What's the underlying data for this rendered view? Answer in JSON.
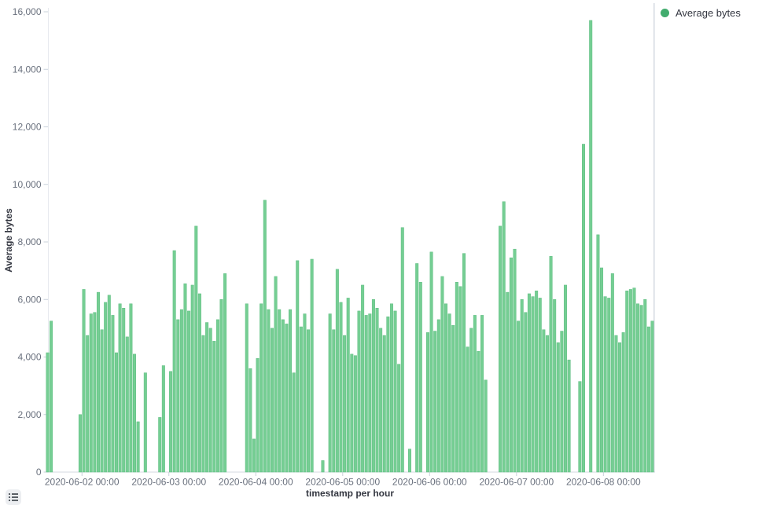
{
  "legend": {
    "label": "Average bytes",
    "color": "#42AC6E",
    "swatch_icon": "legend-series-dot-icon"
  },
  "y_axis": {
    "title": "Average bytes",
    "ticks": [
      {
        "v": 0,
        "label": "0"
      },
      {
        "v": 2000,
        "label": "2,000"
      },
      {
        "v": 4000,
        "label": "4,000"
      },
      {
        "v": 6000,
        "label": "6,000"
      },
      {
        "v": 8000,
        "label": "8,000"
      },
      {
        "v": 10000,
        "label": "10,000"
      },
      {
        "v": 12000,
        "label": "12,000"
      },
      {
        "v": 14000,
        "label": "14,000"
      },
      {
        "v": 16000,
        "label": "16,000"
      }
    ]
  },
  "x_axis": {
    "title": "timestamp per hour",
    "ticks": [
      {
        "h": 10,
        "label": "2020-06-02 00:00"
      },
      {
        "h": 34,
        "label": "2020-06-03 00:00"
      },
      {
        "h": 58,
        "label": "2020-06-04 00:00"
      },
      {
        "h": 82,
        "label": "2020-06-05 00:00"
      },
      {
        "h": 106,
        "label": "2020-06-06 00:00"
      },
      {
        "h": 130,
        "label": "2020-06-07 00:00"
      },
      {
        "h": 154,
        "label": "2020-06-08 00:00"
      }
    ]
  },
  "controls": {
    "legend_toggle_icon": "list-icon"
  },
  "chart_data": {
    "type": "bar",
    "title": "",
    "series_name": "Average bytes",
    "xlabel": "timestamp per hour",
    "ylabel": "Average bytes",
    "ylim": [
      0,
      16000
    ],
    "x_unit": "hours, h = hours after chart start (approx 2020-06-01 14:00); span = 168 h (7 days)",
    "grid": false,
    "legend_position": "top-right",
    "bar_color": "#75CE93",
    "bar_edge_color": "#5FBE82",
    "points": [
      {
        "h": 0,
        "v": 4150
      },
      {
        "h": 1,
        "v": 5250
      },
      {
        "h": 9,
        "v": 2000
      },
      {
        "h": 10,
        "v": 6350
      },
      {
        "h": 11,
        "v": 4750
      },
      {
        "h": 12,
        "v": 5500
      },
      {
        "h": 13,
        "v": 5550
      },
      {
        "h": 14,
        "v": 6250
      },
      {
        "h": 15,
        "v": 4950
      },
      {
        "h": 16,
        "v": 5900
      },
      {
        "h": 17,
        "v": 6150
      },
      {
        "h": 18,
        "v": 5450
      },
      {
        "h": 19,
        "v": 4150
      },
      {
        "h": 20,
        "v": 5850
      },
      {
        "h": 21,
        "v": 5700
      },
      {
        "h": 22,
        "v": 4700
      },
      {
        "h": 23,
        "v": 5850
      },
      {
        "h": 24,
        "v": 4100
      },
      {
        "h": 25,
        "v": 1750
      },
      {
        "h": 27,
        "v": 3450
      },
      {
        "h": 31,
        "v": 1900
      },
      {
        "h": 32,
        "v": 3700
      },
      {
        "h": 34,
        "v": 3500
      },
      {
        "h": 35,
        "v": 7700
      },
      {
        "h": 36,
        "v": 5300
      },
      {
        "h": 37,
        "v": 5650
      },
      {
        "h": 38,
        "v": 6550
      },
      {
        "h": 39,
        "v": 5600
      },
      {
        "h": 40,
        "v": 6500
      },
      {
        "h": 41,
        "v": 8550
      },
      {
        "h": 42,
        "v": 6200
      },
      {
        "h": 43,
        "v": 4750
      },
      {
        "h": 44,
        "v": 5200
      },
      {
        "h": 45,
        "v": 5000
      },
      {
        "h": 46,
        "v": 4550
      },
      {
        "h": 47,
        "v": 5300
      },
      {
        "h": 48,
        "v": 6000
      },
      {
        "h": 49,
        "v": 6900
      },
      {
        "h": 55,
        "v": 5850
      },
      {
        "h": 56,
        "v": 3600
      },
      {
        "h": 57,
        "v": 1150
      },
      {
        "h": 58,
        "v": 3950
      },
      {
        "h": 59,
        "v": 5850
      },
      {
        "h": 60,
        "v": 9450
      },
      {
        "h": 61,
        "v": 5650
      },
      {
        "h": 62,
        "v": 5000
      },
      {
        "h": 63,
        "v": 6800
      },
      {
        "h": 64,
        "v": 5650
      },
      {
        "h": 65,
        "v": 5300
      },
      {
        "h": 66,
        "v": 5150
      },
      {
        "h": 67,
        "v": 5650
      },
      {
        "h": 68,
        "v": 3450
      },
      {
        "h": 69,
        "v": 7350
      },
      {
        "h": 70,
        "v": 5050
      },
      {
        "h": 71,
        "v": 5500
      },
      {
        "h": 72,
        "v": 4950
      },
      {
        "h": 73,
        "v": 7400
      },
      {
        "h": 76,
        "v": 400
      },
      {
        "h": 78,
        "v": 5500
      },
      {
        "h": 79,
        "v": 4950
      },
      {
        "h": 80,
        "v": 7050
      },
      {
        "h": 81,
        "v": 5900
      },
      {
        "h": 82,
        "v": 4750
      },
      {
        "h": 83,
        "v": 6050
      },
      {
        "h": 84,
        "v": 4100
      },
      {
        "h": 85,
        "v": 4050
      },
      {
        "h": 86,
        "v": 5600
      },
      {
        "h": 87,
        "v": 6500
      },
      {
        "h": 88,
        "v": 5450
      },
      {
        "h": 89,
        "v": 5500
      },
      {
        "h": 90,
        "v": 6000
      },
      {
        "h": 91,
        "v": 5700
      },
      {
        "h": 92,
        "v": 5000
      },
      {
        "h": 93,
        "v": 4750
      },
      {
        "h": 94,
        "v": 5400
      },
      {
        "h": 95,
        "v": 5850
      },
      {
        "h": 96,
        "v": 5600
      },
      {
        "h": 97,
        "v": 3750
      },
      {
        "h": 98,
        "v": 8500
      },
      {
        "h": 100,
        "v": 800
      },
      {
        "h": 102,
        "v": 7250
      },
      {
        "h": 103,
        "v": 6600
      },
      {
        "h": 105,
        "v": 4850
      },
      {
        "h": 106,
        "v": 7650
      },
      {
        "h": 107,
        "v": 4900
      },
      {
        "h": 108,
        "v": 5300
      },
      {
        "h": 109,
        "v": 6800
      },
      {
        "h": 110,
        "v": 5850
      },
      {
        "h": 111,
        "v": 5500
      },
      {
        "h": 112,
        "v": 5100
      },
      {
        "h": 113,
        "v": 6600
      },
      {
        "h": 114,
        "v": 6450
      },
      {
        "h": 115,
        "v": 7600
      },
      {
        "h": 116,
        "v": 4350
      },
      {
        "h": 117,
        "v": 5000
      },
      {
        "h": 118,
        "v": 5450
      },
      {
        "h": 119,
        "v": 4200
      },
      {
        "h": 120,
        "v": 5450
      },
      {
        "h": 121,
        "v": 3200
      },
      {
        "h": 125,
        "v": 8550
      },
      {
        "h": 126,
        "v": 9400
      },
      {
        "h": 127,
        "v": 6250
      },
      {
        "h": 128,
        "v": 7450
      },
      {
        "h": 129,
        "v": 7750
      },
      {
        "h": 130,
        "v": 5250
      },
      {
        "h": 131,
        "v": 6000
      },
      {
        "h": 132,
        "v": 5550
      },
      {
        "h": 133,
        "v": 6200
      },
      {
        "h": 134,
        "v": 6100
      },
      {
        "h": 135,
        "v": 6300
      },
      {
        "h": 136,
        "v": 6050
      },
      {
        "h": 137,
        "v": 4950
      },
      {
        "h": 138,
        "v": 4750
      },
      {
        "h": 139,
        "v": 7500
      },
      {
        "h": 140,
        "v": 6000
      },
      {
        "h": 141,
        "v": 4500
      },
      {
        "h": 142,
        "v": 4900
      },
      {
        "h": 143,
        "v": 6500
      },
      {
        "h": 144,
        "v": 3900
      },
      {
        "h": 147,
        "v": 3150
      },
      {
        "h": 148,
        "v": 11400
      },
      {
        "h": 150,
        "v": 15700
      },
      {
        "h": 152,
        "v": 8250
      },
      {
        "h": 153,
        "v": 7100
      },
      {
        "h": 154,
        "v": 6100
      },
      {
        "h": 155,
        "v": 6050
      },
      {
        "h": 156,
        "v": 6900
      },
      {
        "h": 157,
        "v": 4750
      },
      {
        "h": 158,
        "v": 4500
      },
      {
        "h": 159,
        "v": 4850
      },
      {
        "h": 160,
        "v": 6300
      },
      {
        "h": 161,
        "v": 6350
      },
      {
        "h": 162,
        "v": 6400
      },
      {
        "h": 163,
        "v": 5850
      },
      {
        "h": 164,
        "v": 5800
      },
      {
        "h": 165,
        "v": 6000
      },
      {
        "h": 166,
        "v": 5050
      },
      {
        "h": 167,
        "v": 5250
      }
    ]
  }
}
